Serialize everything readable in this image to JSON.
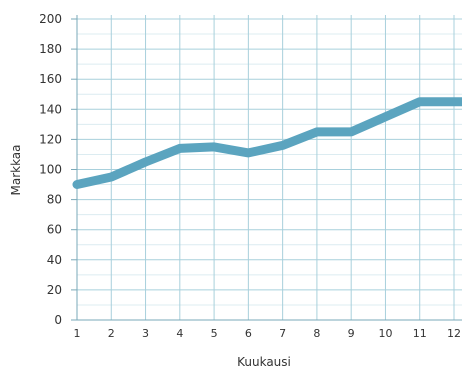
{
  "chart_data": {
    "type": "line",
    "title": "",
    "xlabel": "Kuukausi",
    "ylabel": "Markkaa",
    "x": [
      1,
      2,
      3,
      4,
      5,
      6,
      7,
      8,
      9,
      10,
      11,
      12
    ],
    "series": [
      {
        "values": [
          90,
          95,
          105,
          114,
          115,
          111,
          116,
          125,
          125,
          135,
          145,
          145
        ]
      }
    ],
    "xlim": [
      1,
      12
    ],
    "ylim": [
      0,
      200
    ],
    "yticks": [
      0,
      20,
      40,
      60,
      80,
      100,
      120,
      140,
      160,
      180,
      200
    ],
    "xticks": [
      1,
      2,
      3,
      4,
      5,
      6,
      7,
      8,
      9,
      10,
      11,
      12
    ],
    "grid": true,
    "minor_grid": true,
    "legend": "none",
    "colors": {
      "line": "#5ba4bf",
      "grid_major": "#a8d0dc",
      "grid_minor": "#dcecf1",
      "axis": "#7aa9b8",
      "text": "#333333"
    }
  }
}
